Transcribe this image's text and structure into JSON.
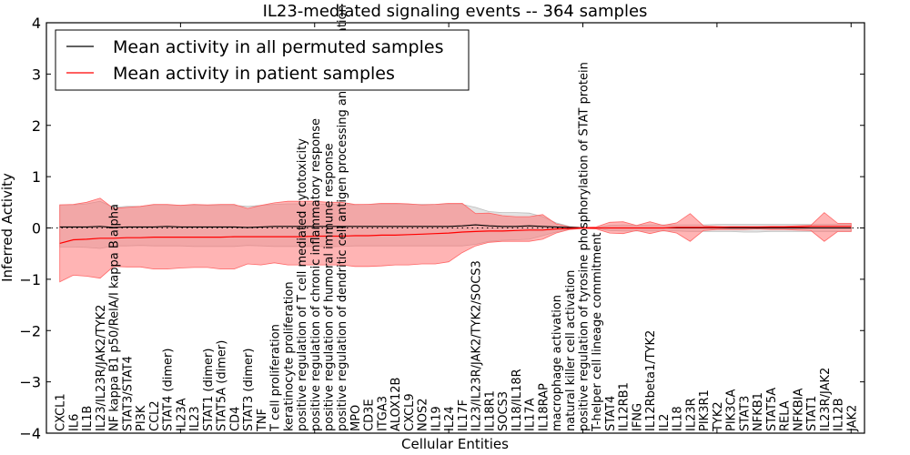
{
  "chart_data": {
    "type": "line",
    "title": "IL23-mediated signaling events -- 364 samples",
    "xlabel": "Cellular Entities",
    "ylabel": "Inferred Activity",
    "ylim": [
      -4,
      4
    ],
    "yticks": [
      "4",
      "3",
      "2",
      "1",
      "0",
      "−1",
      "−2",
      "−3",
      "−4"
    ],
    "ytick_values": [
      4,
      3,
      2,
      1,
      0,
      -1,
      -2,
      -3,
      -4
    ],
    "xlim": [
      0,
      61
    ],
    "legend": {
      "placement": "top-left",
      "entries": [
        {
          "label": "Mean activity in all permuted samples",
          "color": "#000000"
        },
        {
          "label": "Mean activity in patient samples",
          "color": "#ff0000"
        }
      ]
    },
    "colors": {
      "permuted_band": "#c8c8c8",
      "patient_band": "#ff7777",
      "patient_line": "#ff0000",
      "permuted_line": "#000000"
    },
    "categories": [
      "CXCL1",
      "IL6",
      "IL1B",
      "IL23/IL23R/JAK2/TYK2",
      "NF kappa B1 p50/RelA/I kappa B alpha",
      "STAT3/STAT4",
      "PI3K",
      "CCL2",
      "STAT4 (dimer)",
      "IL23A",
      "IL23",
      "STAT1 (dimer)",
      "STAT5A (dimer)",
      "CD4",
      "STAT3 (dimer)",
      "TNF",
      "T cell proliferation",
      "keratinocyte proliferation",
      "positive regulation of T cell mediated cytotoxicity",
      "positive regulation of chronic inflammatory response",
      "positive regulation of humoral immune response",
      "positive regulation of dendritic cell antigen processing and presentation",
      "MPO",
      "CD3E",
      "ITGA3",
      "ALOX12B",
      "CXCL9",
      "NOS2",
      "IL19",
      "IL24",
      "IL17F",
      "IL23/IL23R/JAK2/TYK2/SOCS3",
      "IL18R1",
      "SOCS3",
      "IL18/IL18R",
      "IL17A",
      "IL18RAP",
      "macrophage activation",
      "natural killer cell activation",
      "positive regulation of tyrosine phosphorylation of STAT protein",
      "T-helper cell lineage commitment",
      "STAT4",
      "IL12RB1",
      "IFNG",
      "IL12Rbeta1/TYK2",
      "IL2",
      "IL18",
      "IL23R",
      "PIK3R1",
      "TYK2",
      "PIK3CA",
      "STAT3",
      "NFKB1",
      "STAT5A",
      "RELA",
      "NFKBIA",
      "STAT1",
      "IL23R/JAK2",
      "IL12B",
      "JAK2"
    ],
    "series": [
      {
        "name": "Mean activity in all permuted samples",
        "values": [
          0.02,
          0.02,
          0.02,
          0.03,
          0.01,
          0.02,
          0.02,
          0.02,
          0.03,
          0.02,
          0.02,
          0.02,
          0.02,
          0.02,
          0.01,
          0.02,
          0.03,
          0.03,
          0.03,
          0.03,
          0.03,
          0.03,
          0.03,
          0.03,
          0.03,
          0.03,
          0.03,
          0.03,
          0.03,
          0.03,
          0.04,
          0.06,
          0.04,
          0.03,
          0.03,
          0.04,
          0.03,
          0.02,
          0.01,
          0.0,
          0.0,
          0.0,
          0.0,
          0.0,
          0.0,
          0.0,
          0.0,
          0.0,
          0.0,
          0.0,
          0.0,
          0.0,
          0.0,
          0.0,
          0.0,
          0.0,
          0.0,
          0.0,
          0.0,
          0.0
        ],
        "upper": [
          0.45,
          0.45,
          0.47,
          0.52,
          0.4,
          0.42,
          0.42,
          0.45,
          0.45,
          0.44,
          0.45,
          0.44,
          0.44,
          0.44,
          0.42,
          0.44,
          0.46,
          0.47,
          0.47,
          0.47,
          0.46,
          0.46,
          0.45,
          0.46,
          0.46,
          0.46,
          0.46,
          0.46,
          0.46,
          0.46,
          0.46,
          0.4,
          0.32,
          0.3,
          0.3,
          0.29,
          0.22,
          0.1,
          0.03,
          0.01,
          0.01,
          0.05,
          0.06,
          0.05,
          0.06,
          0.06,
          0.06,
          0.06,
          0.06,
          0.07,
          0.07,
          0.07,
          0.07,
          0.07,
          0.07,
          0.07,
          0.07,
          0.07,
          0.07,
          0.07
        ],
        "lower": [
          -0.37,
          -0.37,
          -0.38,
          -0.4,
          -0.35,
          -0.35,
          -0.34,
          -0.35,
          -0.35,
          -0.35,
          -0.36,
          -0.36,
          -0.36,
          -0.36,
          -0.34,
          -0.35,
          -0.36,
          -0.36,
          -0.36,
          -0.36,
          -0.36,
          -0.36,
          -0.35,
          -0.35,
          -0.35,
          -0.35,
          -0.35,
          -0.35,
          -0.35,
          -0.35,
          -0.35,
          -0.32,
          -0.26,
          -0.24,
          -0.23,
          -0.22,
          -0.15,
          -0.08,
          -0.02,
          -0.01,
          -0.01,
          -0.05,
          -0.06,
          -0.06,
          -0.06,
          -0.06,
          -0.06,
          -0.07,
          -0.07,
          -0.07,
          -0.07,
          -0.08,
          -0.08,
          -0.07,
          -0.07,
          -0.07,
          -0.07,
          -0.07,
          -0.07,
          -0.07
        ]
      },
      {
        "name": "Mean activity in patient samples",
        "values": [
          -0.3,
          -0.23,
          -0.22,
          -0.2,
          -0.2,
          -0.19,
          -0.19,
          -0.18,
          -0.18,
          -0.18,
          -0.18,
          -0.18,
          -0.18,
          -0.17,
          -0.17,
          -0.17,
          -0.17,
          -0.17,
          -0.17,
          -0.16,
          -0.16,
          -0.16,
          -0.15,
          -0.15,
          -0.14,
          -0.14,
          -0.13,
          -0.12,
          -0.11,
          -0.1,
          -0.08,
          -0.07,
          -0.06,
          -0.06,
          -0.05,
          -0.04,
          -0.04,
          -0.02,
          -0.01,
          0.0,
          0.0,
          0.0,
          0.0,
          0.0,
          0.0,
          0.0,
          0.01,
          0.01,
          0.01,
          0.01,
          0.02,
          0.02,
          0.02,
          0.02,
          0.02,
          0.02,
          0.03,
          0.03,
          0.03,
          0.03
        ],
        "upper": [
          0.45,
          0.46,
          0.5,
          0.58,
          0.38,
          0.4,
          0.42,
          0.46,
          0.46,
          0.44,
          0.46,
          0.45,
          0.46,
          0.46,
          0.38,
          0.44,
          0.49,
          0.52,
          0.52,
          0.52,
          0.5,
          0.5,
          0.46,
          0.46,
          0.48,
          0.48,
          0.47,
          0.45,
          0.46,
          0.48,
          0.48,
          0.28,
          0.29,
          0.24,
          0.22,
          0.22,
          0.26,
          0.08,
          0.02,
          0.01,
          0.02,
          0.11,
          0.12,
          0.05,
          0.12,
          0.05,
          0.1,
          0.28,
          0.04,
          0.03,
          0.02,
          0.02,
          0.02,
          0.03,
          0.03,
          0.04,
          0.05,
          0.3,
          0.09,
          0.09
        ],
        "lower": [
          -1.05,
          -0.92,
          -0.94,
          -0.98,
          -0.75,
          -0.76,
          -0.76,
          -0.8,
          -0.8,
          -0.78,
          -0.77,
          -0.77,
          -0.8,
          -0.8,
          -0.7,
          -0.72,
          -0.68,
          -0.72,
          -0.72,
          -0.72,
          -0.72,
          -0.72,
          -0.75,
          -0.75,
          -0.74,
          -0.72,
          -0.72,
          -0.7,
          -0.7,
          -0.66,
          -0.48,
          -0.35,
          -0.28,
          -0.26,
          -0.26,
          -0.26,
          -0.22,
          -0.1,
          -0.03,
          -0.01,
          -0.02,
          -0.1,
          -0.11,
          -0.05,
          -0.11,
          -0.05,
          -0.1,
          -0.26,
          -0.05,
          -0.03,
          -0.03,
          -0.03,
          -0.02,
          -0.03,
          -0.03,
          -0.04,
          -0.05,
          -0.26,
          -0.07,
          -0.07
        ]
      }
    ]
  }
}
